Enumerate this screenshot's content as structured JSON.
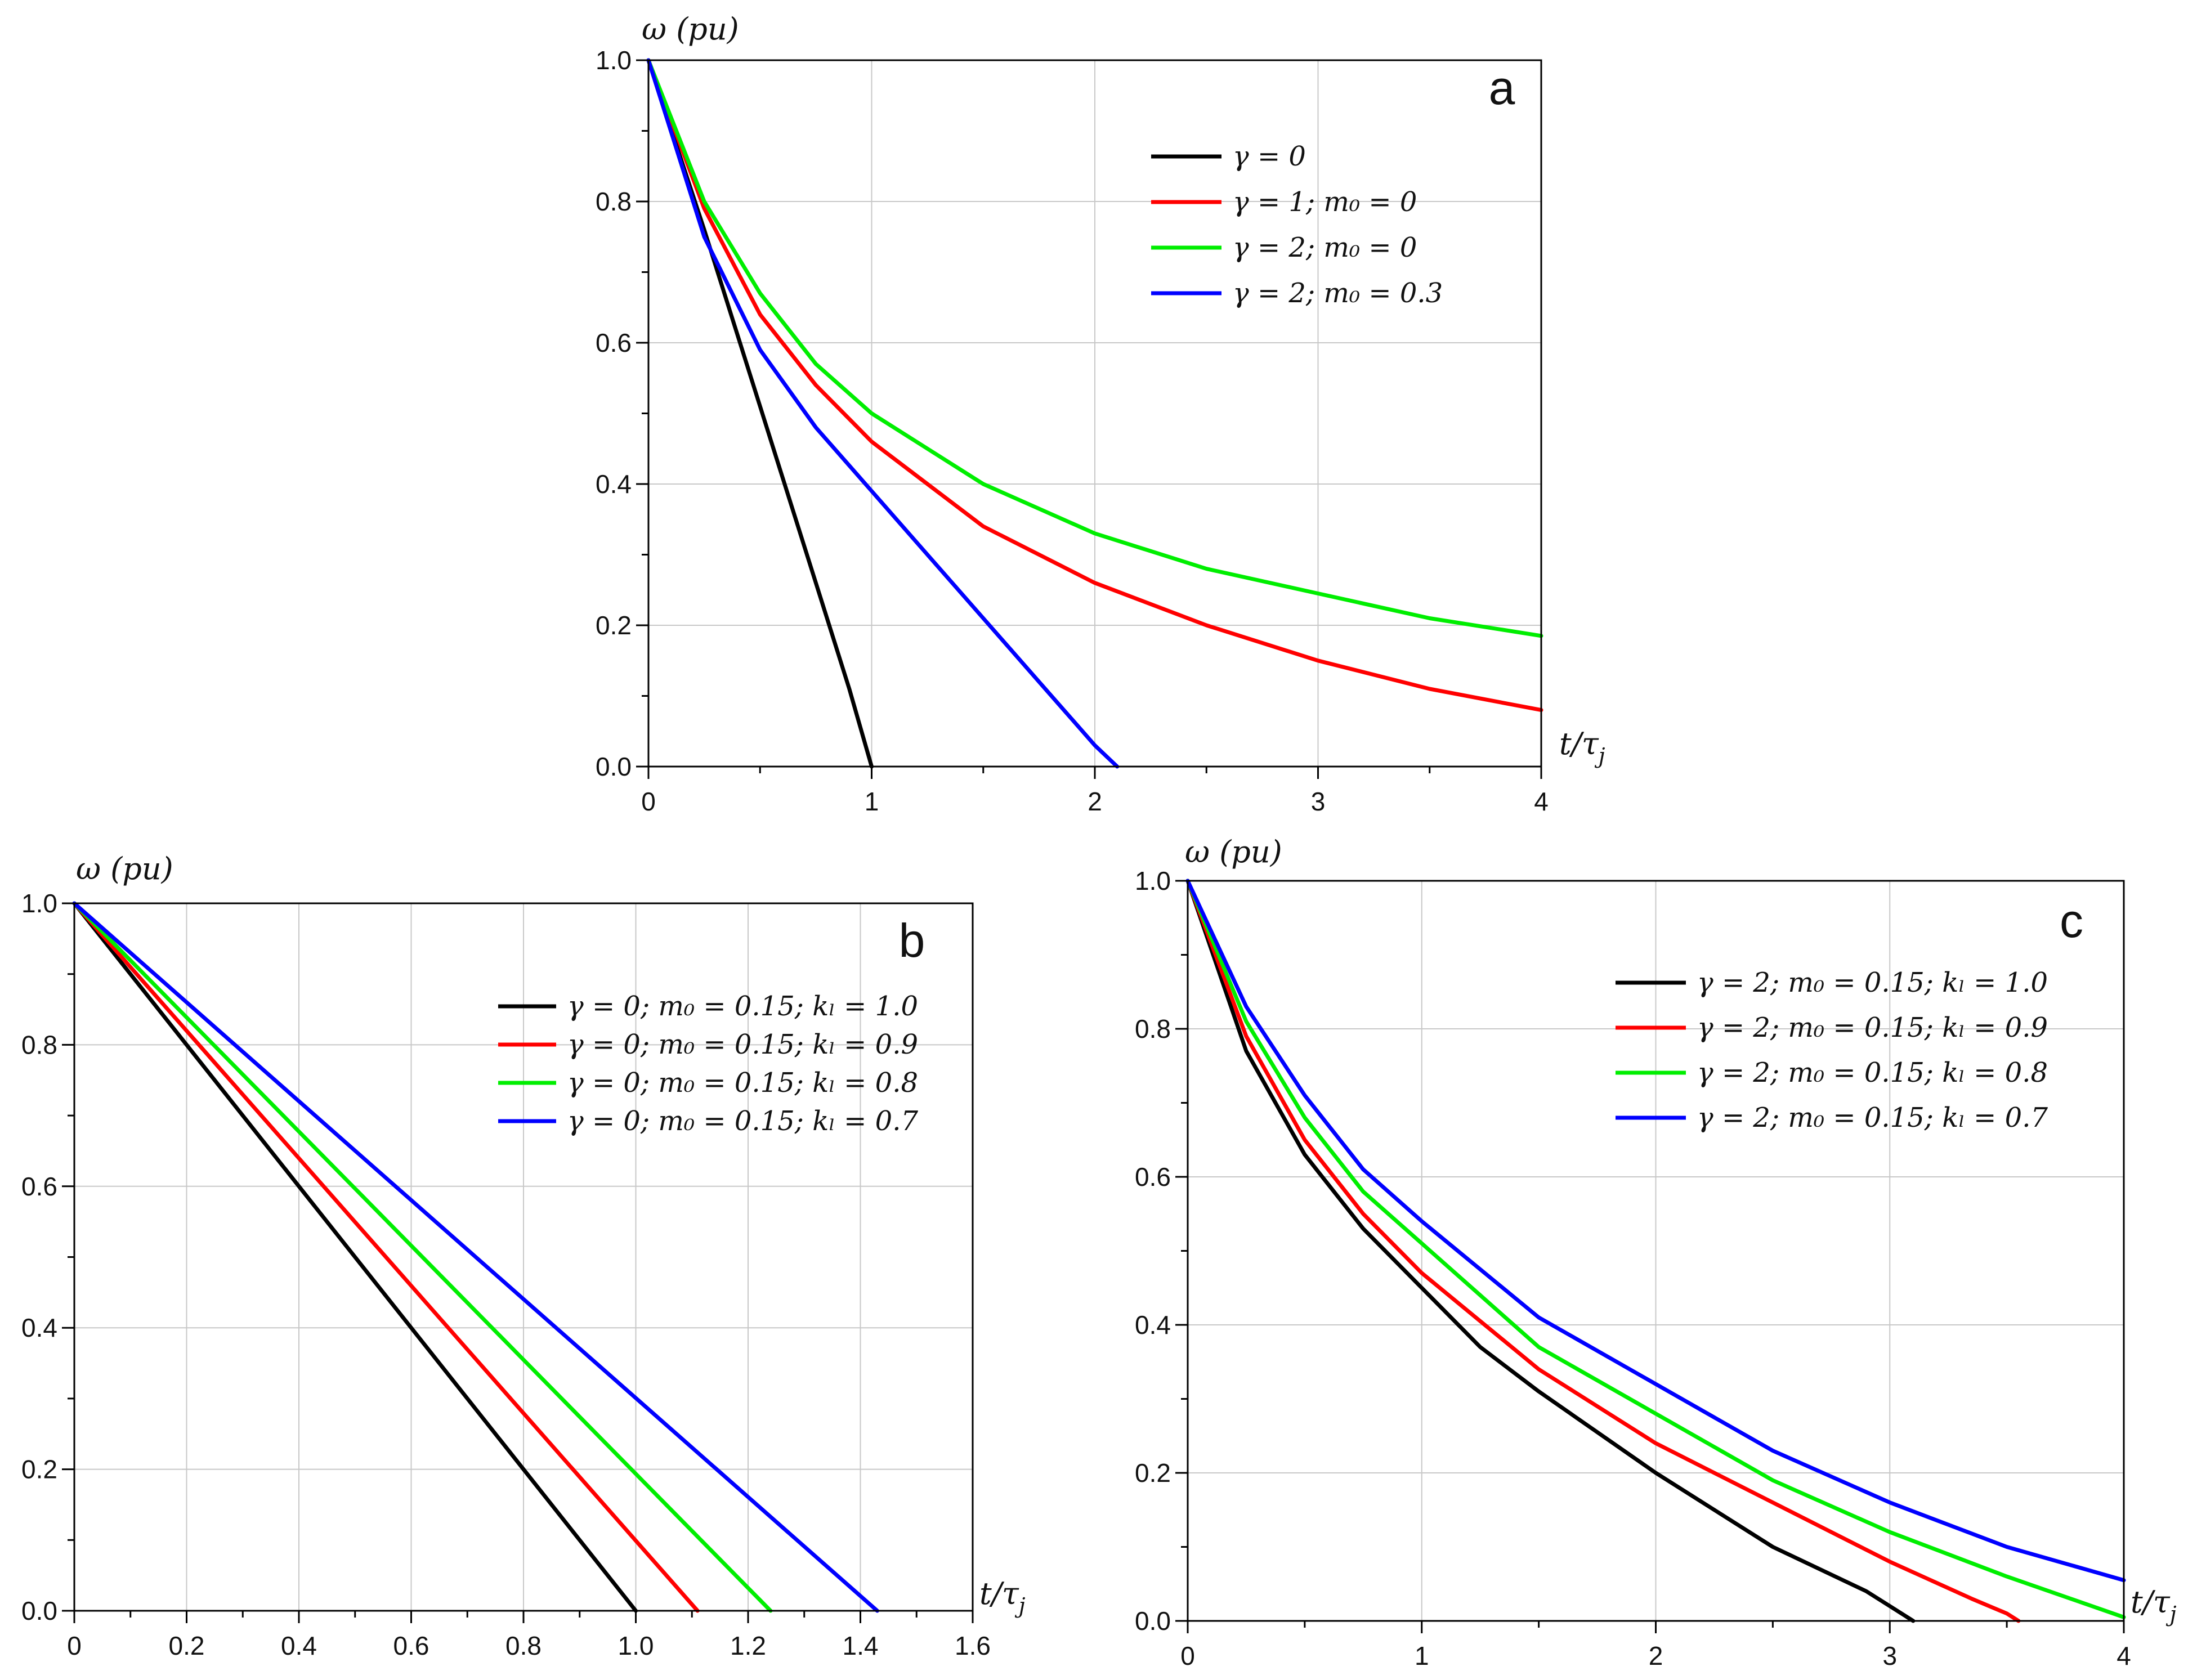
{
  "chart_data": [
    {
      "type": "line",
      "panel_letter": "a",
      "ylabel": "ω (pu)",
      "xlabel": "t/τ",
      "xlabel_sub": "j",
      "xlim": [
        0,
        4
      ],
      "ylim": [
        0,
        1
      ],
      "xticks": [
        "0",
        "1",
        "2",
        "3",
        "4"
      ],
      "xtick_values": [
        0,
        1,
        2,
        3,
        4
      ],
      "yticks": [
        "0.0",
        "0.2",
        "0.4",
        "0.6",
        "0.8",
        "1.0"
      ],
      "ytick_values": [
        0,
        0.2,
        0.4,
        0.6,
        0.8,
        1.0
      ],
      "grid": true,
      "legend_position": "top-right",
      "series": [
        {
          "name": "γ = 0",
          "color": "#000000",
          "x": [
            0,
            0.25,
            0.5,
            0.75,
            0.9,
            1.0
          ],
          "y": [
            1.0,
            0.76,
            0.51,
            0.26,
            0.11,
            0.0
          ]
        },
        {
          "name": "γ = 1; m₀ = 0",
          "color": "#ff0000",
          "x": [
            0,
            0.25,
            0.5,
            0.75,
            1.0,
            1.5,
            2.0,
            2.5,
            3.0,
            3.5,
            4.0
          ],
          "y": [
            1.0,
            0.79,
            0.64,
            0.54,
            0.46,
            0.34,
            0.26,
            0.2,
            0.15,
            0.11,
            0.08
          ]
        },
        {
          "name": "γ = 2; m₀ = 0",
          "color": "#00ee00",
          "x": [
            0,
            0.25,
            0.5,
            0.75,
            1.0,
            1.5,
            2.0,
            2.5,
            3.0,
            3.5,
            4.0
          ],
          "y": [
            1.0,
            0.8,
            0.67,
            0.57,
            0.5,
            0.4,
            0.33,
            0.28,
            0.245,
            0.21,
            0.185
          ]
        },
        {
          "name": "γ = 2; m₀ = 0.3",
          "color": "#0000ff",
          "x": [
            0,
            0.25,
            0.5,
            0.75,
            1.0,
            1.25,
            1.5,
            1.75,
            2.0,
            2.1
          ],
          "y": [
            1.0,
            0.75,
            0.59,
            0.48,
            0.39,
            0.3,
            0.21,
            0.12,
            0.03,
            0.0
          ]
        }
      ]
    },
    {
      "type": "line",
      "panel_letter": "b",
      "ylabel": "ω (pu)",
      "xlabel": "t/τ",
      "xlabel_sub": "j",
      "xlim": [
        0,
        1.6
      ],
      "ylim": [
        0,
        1
      ],
      "xticks": [
        "0",
        "0.2",
        "0.4",
        "0.6",
        "0.8",
        "1.0",
        "1.2",
        "1.4",
        "1.6"
      ],
      "xtick_values": [
        0,
        0.2,
        0.4,
        0.6,
        0.8,
        1.0,
        1.2,
        1.4,
        1.6
      ],
      "yticks": [
        "0.0",
        "0.2",
        "0.4",
        "0.6",
        "0.8",
        "1.0"
      ],
      "ytick_values": [
        0,
        0.2,
        0.4,
        0.6,
        0.8,
        1.0
      ],
      "grid": true,
      "legend_position": "top-right",
      "series": [
        {
          "name": "γ = 0; m₀ = 0.15; kₗ = 1.0",
          "color": "#000000",
          "x": [
            0,
            1.0
          ],
          "y": [
            1.0,
            0.0
          ]
        },
        {
          "name": "γ = 0; m₀ = 0.15; kₗ = 0.9",
          "color": "#ff0000",
          "x": [
            0,
            1.11
          ],
          "y": [
            1.0,
            0.0
          ]
        },
        {
          "name": "γ = 0; m₀ = 0.15; kₗ = 0.8",
          "color": "#00ee00",
          "x": [
            0,
            1.24
          ],
          "y": [
            1.0,
            0.0
          ]
        },
        {
          "name": "γ = 0; m₀ = 0.15; kₗ = 0.7",
          "color": "#0000ff",
          "x": [
            0,
            1.43
          ],
          "y": [
            1.0,
            0.0
          ]
        }
      ]
    },
    {
      "type": "line",
      "panel_letter": "c",
      "ylabel": "ω (pu)",
      "xlabel": "t/τ",
      "xlabel_sub": "j",
      "xlim": [
        0,
        4
      ],
      "ylim": [
        0,
        1
      ],
      "xticks": [
        "0",
        "1",
        "2",
        "3",
        "4"
      ],
      "xtick_values": [
        0,
        1,
        2,
        3,
        4
      ],
      "yticks": [
        "0.0",
        "0.2",
        "0.4",
        "0.6",
        "0.8",
        "1.0"
      ],
      "ytick_values": [
        0,
        0.2,
        0.4,
        0.6,
        0.8,
        1.0
      ],
      "grid": true,
      "legend_position": "top-right",
      "series": [
        {
          "name": "γ = 2; m₀ = 0.15; kₗ = 1.0",
          "color": "#000000",
          "x": [
            0,
            0.25,
            0.5,
            0.75,
            1.0,
            1.25,
            1.5,
            2.0,
            2.5,
            2.9,
            3.0,
            3.1
          ],
          "y": [
            1.0,
            0.77,
            0.63,
            0.53,
            0.45,
            0.37,
            0.31,
            0.2,
            0.1,
            0.04,
            0.02,
            0.0
          ]
        },
        {
          "name": "γ = 2; m₀ = 0.15; kₗ = 0.9",
          "color": "#ff0000",
          "x": [
            0,
            0.25,
            0.5,
            0.75,
            1.0,
            1.5,
            2.0,
            2.5,
            3.0,
            3.35,
            3.5,
            3.55
          ],
          "y": [
            1.0,
            0.79,
            0.65,
            0.55,
            0.47,
            0.34,
            0.24,
            0.16,
            0.08,
            0.03,
            0.01,
            0.0
          ]
        },
        {
          "name": "γ = 2; m₀ = 0.15; kₗ = 0.8",
          "color": "#00ee00",
          "x": [
            0,
            0.25,
            0.5,
            0.75,
            1.0,
            1.5,
            2.0,
            2.5,
            3.0,
            3.5,
            4.0
          ],
          "y": [
            1.0,
            0.81,
            0.68,
            0.58,
            0.51,
            0.37,
            0.28,
            0.19,
            0.12,
            0.06,
            0.005
          ]
        },
        {
          "name": "γ = 2; m₀ = 0.15; kₗ = 0.7",
          "color": "#0000ff",
          "x": [
            0,
            0.25,
            0.5,
            0.75,
            1.0,
            1.5,
            2.0,
            2.5,
            3.0,
            3.5,
            4.0
          ],
          "y": [
            1.0,
            0.83,
            0.71,
            0.61,
            0.54,
            0.41,
            0.32,
            0.23,
            0.16,
            0.1,
            0.055
          ]
        }
      ]
    }
  ]
}
